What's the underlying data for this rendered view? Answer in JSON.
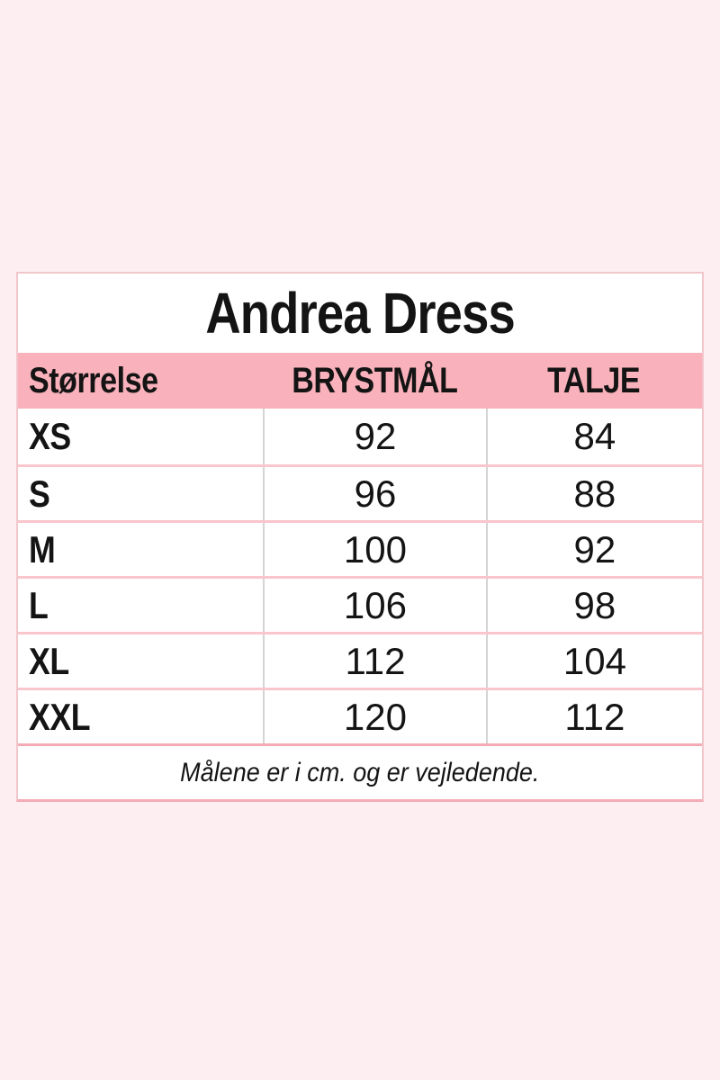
{
  "colors": {
    "page_bg": "#fdeff1",
    "header_bg": "#f9b2bb",
    "card_border": "#f2c7cc",
    "row_border": "#f8c6cc",
    "footer_border": "#f5abb5",
    "divider": "#d4d4d4",
    "text": "#141414"
  },
  "chart_data": {
    "type": "table",
    "title": "Andrea Dress",
    "columns": [
      "Størrelse",
      "BRYSTMÅL",
      "TALJE"
    ],
    "rows": [
      [
        "XS",
        "92",
        "84"
      ],
      [
        "S",
        "96",
        "88"
      ],
      [
        "M",
        "100",
        "92"
      ],
      [
        "L",
        "106",
        "98"
      ],
      [
        "XL",
        "112",
        "104"
      ],
      [
        "XXL",
        "120",
        "112"
      ]
    ],
    "footnote": "Målene er i cm. og er vejledende.",
    "units": "cm"
  }
}
